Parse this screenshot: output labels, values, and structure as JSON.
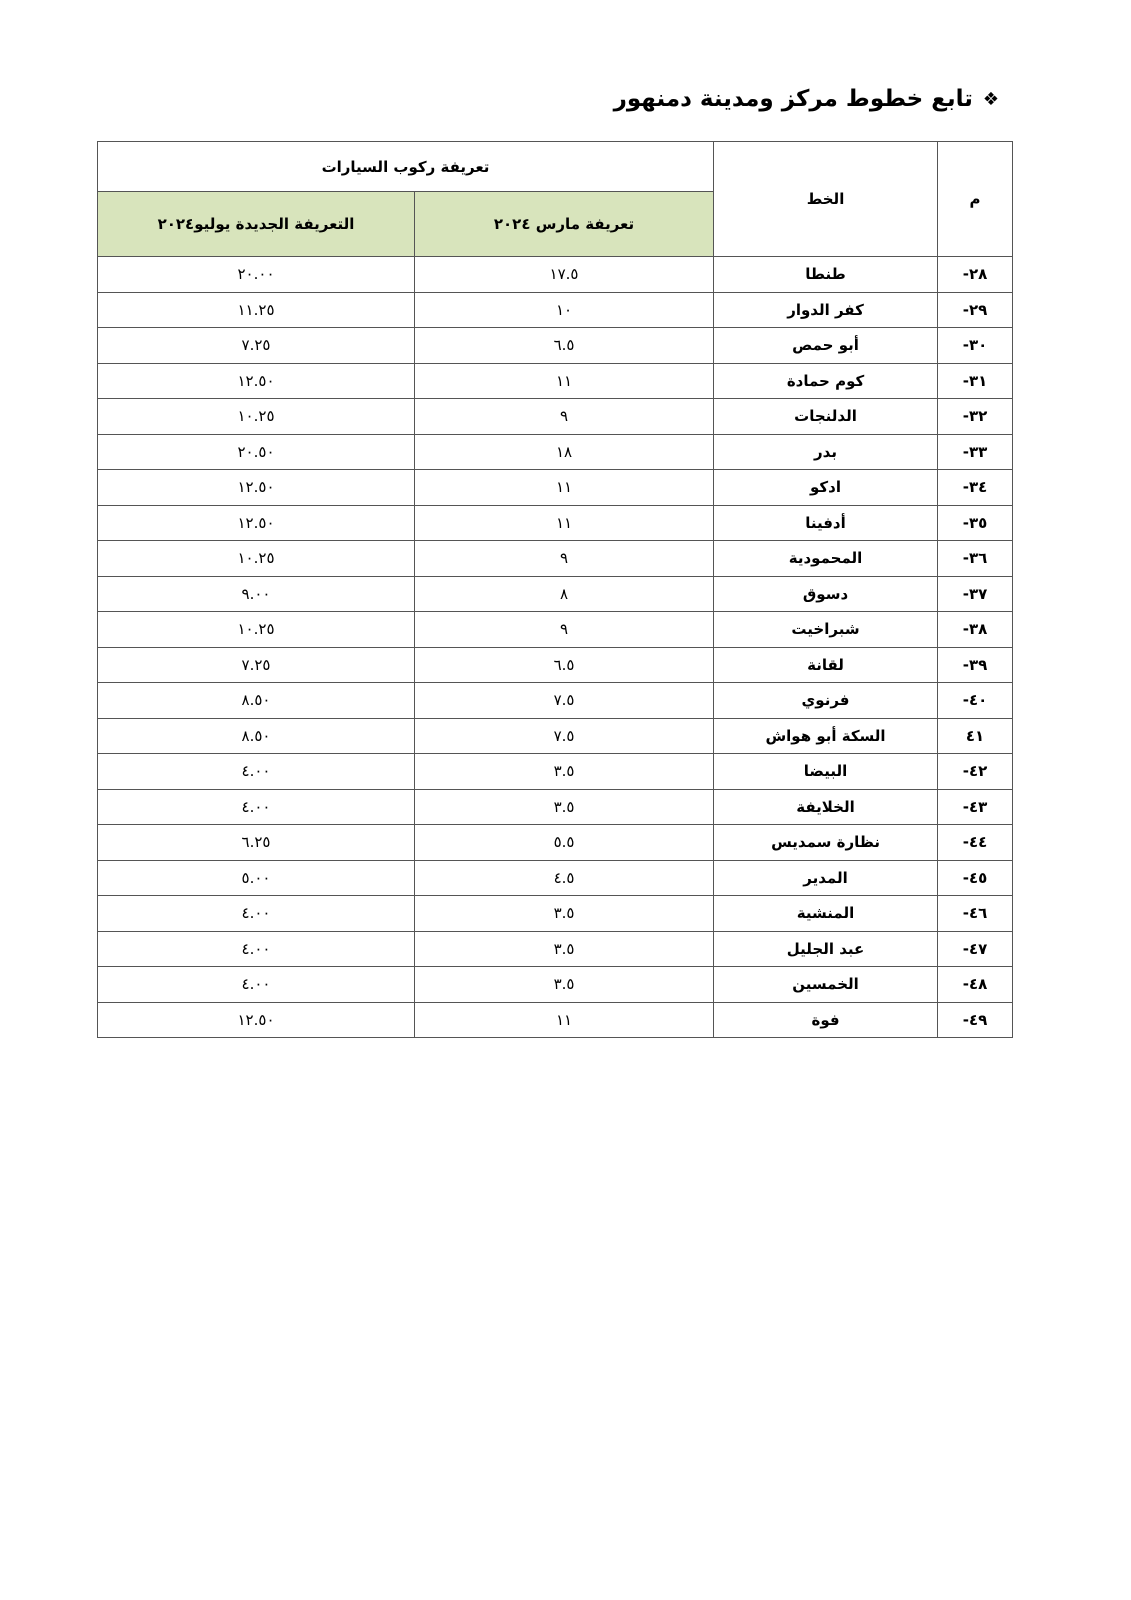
{
  "title": "تابع خطوط مركز ومدينة دمنهور",
  "bullet_icon": "diamond-bullet-icon",
  "table": {
    "headers": {
      "no": "م",
      "line": "الخط",
      "group": "تعريفة ركوب السيارات",
      "march": "تعريفة مارس ٢٠٢٤",
      "july": "التعريفة الجديدة يوليو٢٠٢٤"
    },
    "rows": [
      {
        "no": "-٢٨",
        "line": "طنطا",
        "march": "١٧.٥",
        "july": "٢٠.٠٠"
      },
      {
        "no": "-٢٩",
        "line": "كفر الدوار",
        "march": "١٠",
        "july": "١١.٢٥"
      },
      {
        "no": "-٣٠",
        "line": "أبو حمص",
        "march": "٦.٥",
        "july": "٧.٢٥"
      },
      {
        "no": "-٣١",
        "line": "كوم حمادة",
        "march": "١١",
        "july": "١٢.٥٠"
      },
      {
        "no": "-٣٢",
        "line": "الدلنجات",
        "march": "٩",
        "july": "١٠.٢٥"
      },
      {
        "no": "-٣٣",
        "line": "بدر",
        "march": "١٨",
        "july": "٢٠.٥٠"
      },
      {
        "no": "-٣٤",
        "line": "ادكو",
        "march": "١١",
        "july": "١٢.٥٠"
      },
      {
        "no": "-٣٥",
        "line": "أدفينا",
        "march": "١١",
        "july": "١٢.٥٠"
      },
      {
        "no": "-٣٦",
        "line": "المحمودية",
        "march": "٩",
        "july": "١٠.٢٥"
      },
      {
        "no": "-٣٧",
        "line": "دسوق",
        "march": "٨",
        "july": "٩.٠٠"
      },
      {
        "no": "-٣٨",
        "line": "شبراخيت",
        "march": "٩",
        "july": "١٠.٢٥"
      },
      {
        "no": "-٣٩",
        "line": "لقانة",
        "march": "٦.٥",
        "july": "٧.٢٥"
      },
      {
        "no": "-٤٠",
        "line": "فرنوي",
        "march": "٧.٥",
        "july": "٨.٥٠"
      },
      {
        "no": "٤١",
        "line": "السكة أبو هواش",
        "march": "٧.٥",
        "july": "٨.٥٠"
      },
      {
        "no": "-٤٢",
        "line": "البيضا",
        "march": "٣.٥",
        "july": "٤.٠٠"
      },
      {
        "no": "-٤٣",
        "line": "الخلايفة",
        "march": "٣.٥",
        "july": "٤.٠٠"
      },
      {
        "no": "-٤٤",
        "line": "نظارة سمديس",
        "march": "٥.٥",
        "july": "٦.٢٥"
      },
      {
        "no": "-٤٥",
        "line": "المدير",
        "march": "٤.٥",
        "july": "٥.٠٠"
      },
      {
        "no": "-٤٦",
        "line": "المنشية",
        "march": "٣.٥",
        "july": "٤.٠٠"
      },
      {
        "no": "-٤٧",
        "line": "عبد الجليل",
        "march": "٣.٥",
        "july": "٤.٠٠"
      },
      {
        "no": "-٤٨",
        "line": "الخمسين",
        "march": "٣.٥",
        "july": "٤.٠٠"
      },
      {
        "no": "-٤٩",
        "line": "فوة",
        "march": "١١",
        "july": "١٢.٥٠"
      }
    ]
  }
}
